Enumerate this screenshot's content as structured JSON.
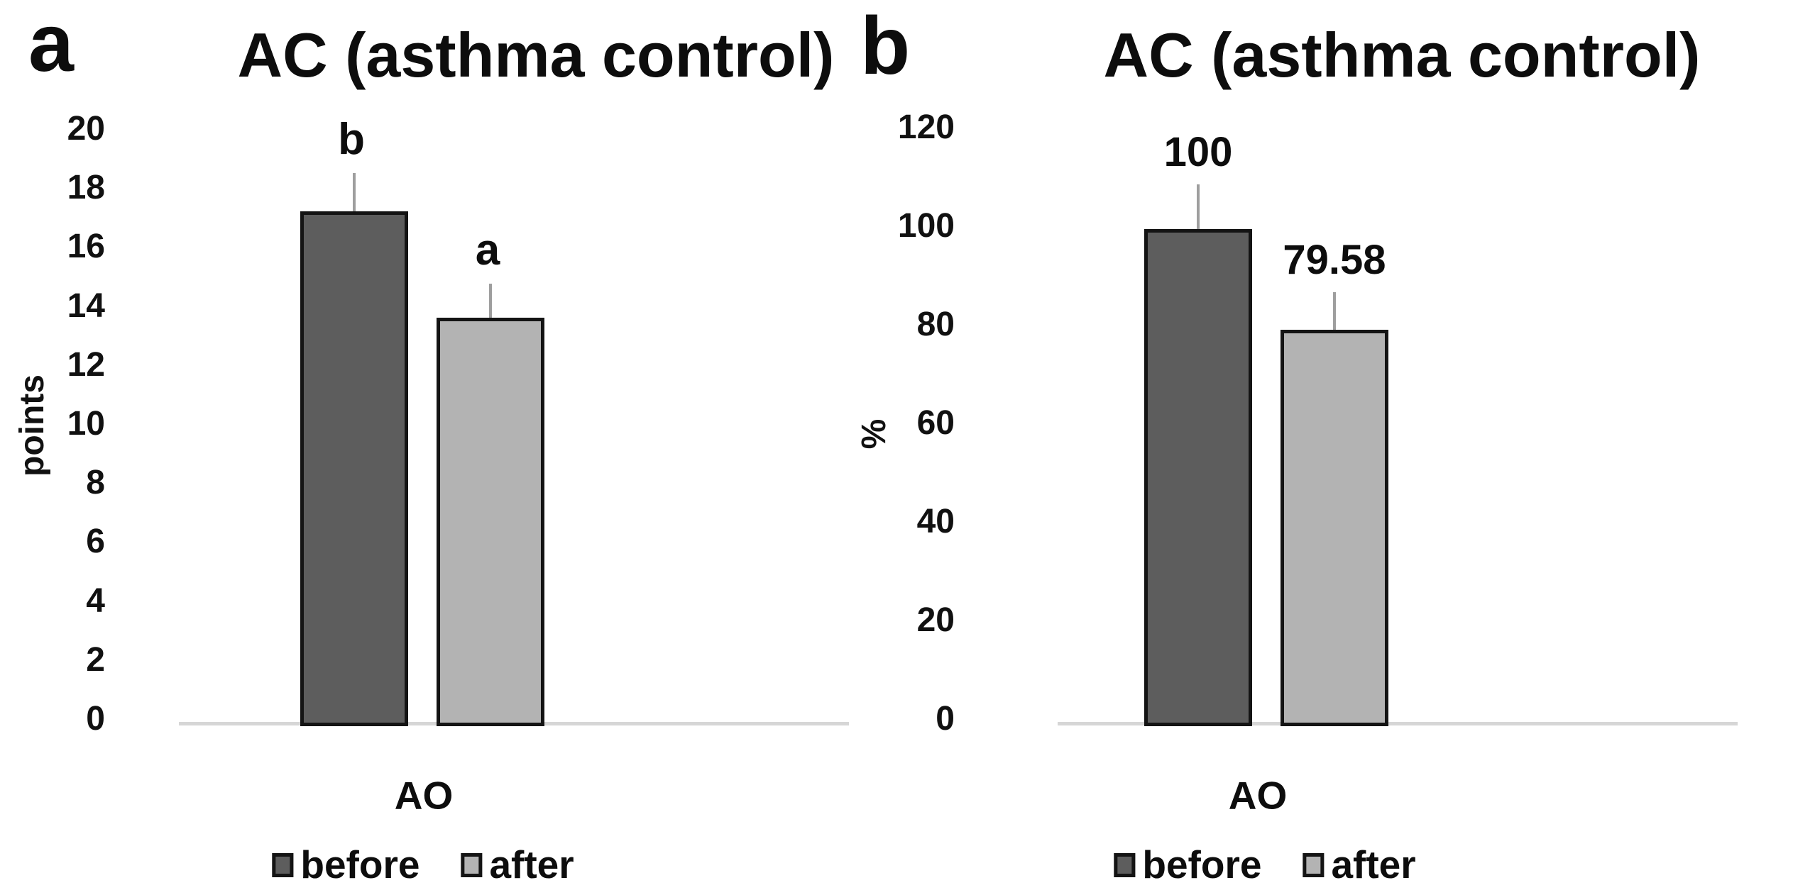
{
  "figure_title": "AC (asthma control) before/after bar charts",
  "style": {
    "background": "#ffffff",
    "text_color": "#111111",
    "bar_border_color": "#141414",
    "error_bar_color": "#9e9e9e",
    "axis_line_color": "#d6d6d6",
    "before_color": "#5d5d5d",
    "after_color": "#b3b3b3"
  },
  "chart_data": [
    {
      "type": "bar",
      "panel_letter": "a",
      "title": "AC (asthma control)",
      "ylabel": "points",
      "xlabel": "",
      "ylim": [
        0,
        20
      ],
      "ytick_step": 2,
      "yticks": [
        0,
        2,
        4,
        6,
        8,
        10,
        12,
        14,
        16,
        18,
        20
      ],
      "x_categories": [
        "AO"
      ],
      "grid": false,
      "legend_position": "bottom",
      "series": [
        {
          "name": "before",
          "value": 17.3,
          "error_up": 1.3,
          "sig_label": "b",
          "data_label": "",
          "color": "#5d5d5d"
        },
        {
          "name": "after",
          "value": 13.7,
          "error_up": 1.15,
          "sig_label": "a",
          "data_label": "",
          "color": "#b3b3b3"
        }
      ]
    },
    {
      "type": "bar",
      "panel_letter": "b",
      "title": "AC (asthma control)",
      "ylabel": "%",
      "xlabel": "",
      "ylim": [
        0,
        120
      ],
      "ytick_step": 20,
      "yticks": [
        0,
        20,
        40,
        60,
        80,
        100,
        120
      ],
      "x_categories": [
        "AO"
      ],
      "grid": false,
      "legend_position": "bottom",
      "series": [
        {
          "name": "before",
          "value": 100,
          "error_up": 9,
          "sig_label": "",
          "data_label": "100",
          "color": "#5d5d5d"
        },
        {
          "name": "after",
          "value": 79.58,
          "error_up": 7.6,
          "sig_label": "",
          "data_label": "79.58",
          "color": "#b3b3b3"
        }
      ]
    }
  ]
}
